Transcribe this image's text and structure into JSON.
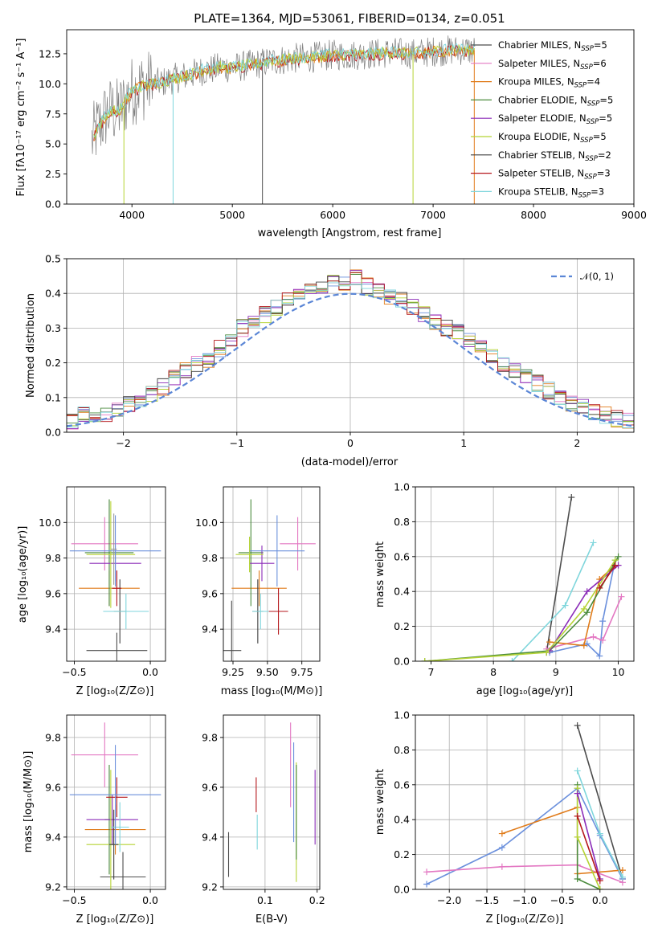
{
  "palette": [
    "#4d4d4d",
    "#e377c2",
    "#e07b1a",
    "#4a8a3c",
    "#8b2cb8",
    "#b5d334",
    "#404040",
    "#b5171c",
    "#7fd6dc",
    "#6a8fdc",
    "#9a9a9a"
  ],
  "ssp_names": [
    "Chabrier MILES",
    "Salpeter MILES",
    "Kroupa MILES",
    "Chabrier ELODIE",
    "Salpeter ELODIE",
    "Kroupa ELODIE",
    "Chabrier STELIB",
    "Salpeter STELIB",
    "Kroupa STELIB"
  ],
  "chart_data": [
    {
      "id": "spectrum",
      "type": "line",
      "title": "PLATE=1364, MJD=53061, FIBERID=0134, z=0.051",
      "xlabel": "wavelength [Angstrom, rest frame]",
      "ylabel": "Flux [fλ10⁻¹⁷ erg cm⁻² s⁻¹ A⁻¹]",
      "xlim": [
        3350,
        9000
      ],
      "ylim": [
        0,
        14.5
      ],
      "xticks": [
        "4000",
        "5000",
        "6000",
        "7000",
        "8000",
        "9000"
      ],
      "xtick_values": [
        4000,
        5000,
        6000,
        7000,
        8000,
        9000
      ],
      "yticks": [
        "0.0",
        "2.5",
        "5.0",
        "7.5",
        "10.0",
        "12.5"
      ],
      "ytick_values": [
        0,
        2.5,
        5,
        7.5,
        10,
        12.5
      ],
      "grid": false,
      "legend_position": "right",
      "legend": [
        "Chabrier MILES, N_SSP=5",
        "Salpeter MILES, N_SSP=6",
        "Kroupa MILES, N_SSP=4",
        "Chabrier ELODIE, N_SSP=5",
        "Salpeter ELODIE, N_SSP=5",
        "Kroupa ELODIE, N_SSP=5",
        "Chabrier STELIB, N_SSP=2",
        "Salpeter STELIB, N_SSP=3",
        "Kroupa STELIB, N_SSP=3"
      ],
      "continuum": {
        "x": [
          3600,
          3650,
          3700,
          3750,
          3800,
          3850,
          3900,
          3950,
          4000,
          4100,
          4200,
          4300,
          4400,
          4500,
          4600,
          4700,
          4800,
          4900,
          5000,
          5200,
          5400,
          5600,
          5800,
          6000,
          6200,
          6400,
          6600,
          6800,
          7000,
          7200,
          7400
        ],
        "y": [
          5.2,
          6.2,
          6.8,
          7.5,
          7.8,
          7.6,
          8.0,
          8.8,
          9.4,
          9.8,
          10.0,
          10.1,
          10.4,
          10.6,
          10.8,
          11.1,
          11.2,
          11.4,
          11.3,
          11.6,
          11.9,
          12.1,
          12.2,
          12.4,
          12.4,
          12.5,
          12.6,
          12.5,
          12.7,
          12.8,
          12.8
        ]
      }
    },
    {
      "id": "residuals",
      "type": "bar",
      "xlabel": "(data-model)/error",
      "ylabel": "Normed distribution",
      "xlim": [
        -2.5,
        2.5
      ],
      "ylim": [
        0,
        0.5
      ],
      "xticks": [
        "−2",
        "−1",
        "0",
        "1",
        "2"
      ],
      "xtick_values": [
        -2,
        -1,
        0,
        1,
        2
      ],
      "yticks": [
        "0.0",
        "0.1",
        "0.2",
        "0.3",
        "0.4",
        "0.5"
      ],
      "ytick_values": [
        0,
        0.1,
        0.2,
        0.3,
        0.4,
        0.5
      ],
      "grid": true,
      "legend_position": "top-right",
      "legend": [
        "𝒩(0, 1)"
      ],
      "bin_edges_start": -2.5,
      "bin_width": 0.1,
      "normal": {
        "mean": 0,
        "sigma": 1
      },
      "hist_values": [
        0.03,
        0.05,
        0.05,
        0.05,
        0.06,
        0.08,
        0.09,
        0.11,
        0.13,
        0.16,
        0.18,
        0.2,
        0.21,
        0.24,
        0.27,
        0.3,
        0.31,
        0.34,
        0.36,
        0.38,
        0.4,
        0.42,
        0.42,
        0.43,
        0.43,
        0.45,
        0.42,
        0.41,
        0.39,
        0.38,
        0.36,
        0.34,
        0.32,
        0.3,
        0.29,
        0.27,
        0.24,
        0.22,
        0.2,
        0.18,
        0.16,
        0.14,
        0.12,
        0.1,
        0.08,
        0.07,
        0.06,
        0.05,
        0.04,
        0.03
      ]
    },
    {
      "id": "age_vs_Z",
      "type": "scatter",
      "xlabel": "Z [log₁₀(Z/Z⊙)]",
      "ylabel": "age  [log₁₀(age/yr)]",
      "xlim": [
        -0.55,
        0.1
      ],
      "ylim": [
        9.22,
        10.2
      ],
      "xticks": [
        "−0.5",
        "0.0"
      ],
      "xtick_values": [
        -0.5,
        0
      ],
      "yticks": [
        "9.4",
        "9.6",
        "9.8",
        "10.0"
      ],
      "ytick_values": [
        9.4,
        9.6,
        9.8,
        10.0
      ],
      "grid": true,
      "points": [
        {
          "c": 0,
          "x": -0.22,
          "y": 9.28,
          "dx": 0.2,
          "dy": 0.1
        },
        {
          "c": 1,
          "x": -0.3,
          "y": 9.88,
          "dx": 0.22,
          "dy": 0.15
        },
        {
          "c": 2,
          "x": -0.27,
          "y": 9.63,
          "dx": 0.2,
          "dy": 0.1
        },
        {
          "c": 3,
          "x": -0.27,
          "y": 9.83,
          "dx": 0.16,
          "dy": 0.3
        },
        {
          "c": 4,
          "x": -0.23,
          "y": 9.77,
          "dx": 0.17,
          "dy": 0.1
        },
        {
          "c": 5,
          "x": -0.26,
          "y": 9.82,
          "dx": 0.16,
          "dy": 0.3
        },
        {
          "c": 6,
          "x": -0.2,
          "y": 9.5,
          "dx": 0.04,
          "dy": 0.18
        },
        {
          "c": 7,
          "x": -0.22,
          "y": 9.63,
          "dx": 0.03,
          "dy": 0.1
        },
        {
          "c": 8,
          "x": -0.16,
          "y": 9.5,
          "dx": 0.15,
          "dy": 0.1
        },
        {
          "c": 9,
          "x": -0.23,
          "y": 9.84,
          "dx": 0.3,
          "dy": 0.2
        },
        {
          "c": 10,
          "x": -0.24,
          "y": 9.85,
          "dx": 0.02,
          "dy": 0.2
        }
      ]
    },
    {
      "id": "age_vs_mass",
      "type": "scatter",
      "xlabel": "mass [log₁₀(M/M⊙)]",
      "ylabel": "",
      "xlim": [
        9.18,
        9.88
      ],
      "ylim": [
        9.22,
        10.2
      ],
      "xticks": [
        "9.25",
        "9.50",
        "9.75"
      ],
      "xtick_values": [
        9.25,
        9.5,
        9.75
      ],
      "yticks": [
        "9.4",
        "9.6",
        "9.8",
        "10.0"
      ],
      "ytick_values": [
        9.4,
        9.6,
        9.8,
        10.0
      ],
      "grid": true,
      "points": [
        {
          "c": 0,
          "x": 9.24,
          "y": 9.28,
          "dx": 0.07,
          "dy": 0.28
        },
        {
          "c": 1,
          "x": 9.72,
          "y": 9.88,
          "dx": 0.13,
          "dy": 0.15
        },
        {
          "c": 2,
          "x": 9.44,
          "y": 9.63,
          "dx": 0.2,
          "dy": 0.1
        },
        {
          "c": 3,
          "x": 9.38,
          "y": 9.83,
          "dx": 0.09,
          "dy": 0.3
        },
        {
          "c": 4,
          "x": 9.46,
          "y": 9.77,
          "dx": 0.09,
          "dy": 0.1
        },
        {
          "c": 5,
          "x": 9.37,
          "y": 9.82,
          "dx": 0.1,
          "dy": 0.1
        },
        {
          "c": 6,
          "x": 9.43,
          "y": 9.5,
          "dx": 0.04,
          "dy": 0.18
        },
        {
          "c": 7,
          "x": 9.58,
          "y": 9.5,
          "dx": 0.07,
          "dy": 0.13
        },
        {
          "c": 8,
          "x": 9.45,
          "y": 9.5,
          "dx": 0.06,
          "dy": 0.1
        },
        {
          "c": 9,
          "x": 9.57,
          "y": 9.84,
          "dx": 0.2,
          "dy": 0.2
        }
      ]
    },
    {
      "id": "weight_vs_age",
      "type": "line",
      "xlabel": "age  [log₁₀(age/yr)]",
      "ylabel": "mass weight",
      "xlim": [
        6.75,
        10.25
      ],
      "ylim": [
        0,
        1
      ],
      "xticks": [
        "7",
        "8",
        "9",
        "10"
      ],
      "xtick_values": [
        7,
        8,
        9,
        10
      ],
      "yticks": [
        "0.0",
        "0.2",
        "0.4",
        "0.6",
        "0.8",
        "1.0"
      ],
      "ytick_values": [
        0,
        0.2,
        0.4,
        0.6,
        0.8,
        1.0
      ],
      "grid": true,
      "series": [
        {
          "c": 0,
          "x": [
            8.85,
            9.25
          ],
          "y": [
            0.05,
            0.94
          ]
        },
        {
          "c": 8,
          "x": [
            8.3,
            9.15,
            9.6
          ],
          "y": [
            0.0,
            0.32,
            0.68
          ]
        },
        {
          "c": 9,
          "x": [
            8.9,
            9.5,
            9.7,
            9.75,
            9.95
          ],
          "y": [
            0.05,
            0.1,
            0.03,
            0.23,
            0.58
          ]
        },
        {
          "c": 1,
          "x": [
            8.85,
            9.6,
            9.75,
            10.05
          ],
          "y": [
            0.07,
            0.14,
            0.12,
            0.37
          ]
        },
        {
          "c": 2,
          "x": [
            8.9,
            9.45,
            9.7,
            9.95
          ],
          "y": [
            0.11,
            0.09,
            0.47,
            0.55
          ]
        },
        {
          "c": 3,
          "x": [
            6.9,
            8.9,
            9.5,
            10.0
          ],
          "y": [
            0.0,
            0.06,
            0.28,
            0.6
          ]
        },
        {
          "c": 4,
          "x": [
            8.9,
            9.5,
            10.0
          ],
          "y": [
            0.06,
            0.4,
            0.55
          ]
        },
        {
          "c": 5,
          "x": [
            6.9,
            8.85,
            9.45,
            9.95
          ],
          "y": [
            0.0,
            0.05,
            0.3,
            0.58
          ]
        },
        {
          "c": 7,
          "x": [
            9.7,
            9.95
          ],
          "y": [
            0.42,
            0.55
          ]
        }
      ]
    },
    {
      "id": "mass_vs_Z",
      "type": "scatter",
      "xlabel": "Z [log₁₀(Z/Z⊙)]",
      "ylabel": "mass [log₁₀(M/M⊙)]",
      "xlim": [
        -0.55,
        0.1
      ],
      "ylim": [
        9.19,
        9.89
      ],
      "xticks": [
        "−0.5",
        "0.0"
      ],
      "xtick_values": [
        -0.5,
        0
      ],
      "yticks": [
        "9.2",
        "9.4",
        "9.6",
        "9.8"
      ],
      "ytick_values": [
        9.2,
        9.4,
        9.6,
        9.8
      ],
      "grid": true,
      "points": [
        {
          "c": 0,
          "x": -0.18,
          "y": 9.24,
          "dx": 0.15,
          "dy": 0.1
        },
        {
          "c": 1,
          "x": -0.3,
          "y": 9.73,
          "dx": 0.22,
          "dy": 0.13
        },
        {
          "c": 2,
          "x": -0.23,
          "y": 9.43,
          "dx": 0.2,
          "dy": 0.1
        },
        {
          "c": 3,
          "x": -0.27,
          "y": 9.47,
          "dx": 0.03,
          "dy": 0.22
        },
        {
          "c": 4,
          "x": -0.25,
          "y": 9.47,
          "dx": 0.17,
          "dy": 0.1
        },
        {
          "c": 5,
          "x": -0.26,
          "y": 9.37,
          "dx": 0.16,
          "dy": 0.3
        },
        {
          "c": 6,
          "x": -0.24,
          "y": 9.37,
          "dx": 0.03,
          "dy": 0.14
        },
        {
          "c": 7,
          "x": -0.22,
          "y": 9.56,
          "dx": 0.07,
          "dy": 0.08
        },
        {
          "c": 8,
          "x": -0.2,
          "y": 9.44,
          "dx": 0.06,
          "dy": 0.1
        },
        {
          "c": 9,
          "x": -0.23,
          "y": 9.57,
          "dx": 0.3,
          "dy": 0.2
        }
      ]
    },
    {
      "id": "mass_vs_ebv",
      "type": "scatter",
      "xlabel": "E(B-V)",
      "ylabel": "",
      "xlim": [
        0.02,
        0.205
      ],
      "ylim": [
        9.19,
        9.89
      ],
      "xticks": [
        "0.1",
        "0.2"
      ],
      "xtick_values": [
        0.1,
        0.2
      ],
      "yticks": [
        "9.2",
        "9.4",
        "9.6",
        "9.8"
      ],
      "ytick_values": [
        9.2,
        9.4,
        9.6,
        9.8
      ],
      "grid": true,
      "points": [
        {
          "c": 0,
          "x": 0.03,
          "y": 9.33,
          "dx": 0,
          "dy": 0.09
        },
        {
          "c": 7,
          "x": 0.083,
          "y": 9.57,
          "dx": 0,
          "dy": 0.07
        },
        {
          "c": 8,
          "x": 0.085,
          "y": 9.42,
          "dx": 0,
          "dy": 0.07
        },
        {
          "c": 1,
          "x": 0.149,
          "y": 9.69,
          "dx": 0,
          "dy": 0.17
        },
        {
          "c": 9,
          "x": 0.155,
          "y": 9.58,
          "dx": 0,
          "dy": 0.2
        },
        {
          "c": 5,
          "x": 0.16,
          "y": 9.46,
          "dx": 0,
          "dy": 0.24
        },
        {
          "c": 3,
          "x": 0.16,
          "y": 9.5,
          "dx": 0,
          "dy": 0.19
        },
        {
          "c": 4,
          "x": 0.196,
          "y": 9.52,
          "dx": 0,
          "dy": 0.15
        }
      ]
    },
    {
      "id": "weight_vs_Z",
      "type": "line",
      "xlabel": "Z [log₁₀(Z/Z⊙)]",
      "ylabel": "mass weight",
      "xlim": [
        -2.45,
        0.45
      ],
      "ylim": [
        0,
        1
      ],
      "xticks": [
        "−2.0",
        "−1.5",
        "−1.0",
        "−0.5",
        "0.0"
      ],
      "xtick_values": [
        -2,
        -1.5,
        -1,
        -0.5,
        0
      ],
      "yticks": [
        "0.0",
        "0.2",
        "0.4",
        "0.6",
        "0.8",
        "1.0"
      ],
      "ytick_values": [
        0,
        0.2,
        0.4,
        0.6,
        0.8,
        1.0
      ],
      "grid": true,
      "series": [
        {
          "c": 0,
          "x": [
            -0.3,
            0.3
          ],
          "y": [
            0.94,
            0.06
          ]
        },
        {
          "c": 9,
          "x": [
            -2.3,
            -1.3,
            -0.3,
            0.0,
            0.3
          ],
          "y": [
            0.03,
            0.24,
            0.58,
            0.31,
            0.06
          ]
        },
        {
          "c": 1,
          "x": [
            -2.3,
            -1.3,
            -0.3,
            0.3
          ],
          "y": [
            0.1,
            0.13,
            0.14,
            0.04
          ]
        },
        {
          "c": 2,
          "x": [
            -1.3,
            -0.3,
            -0.3,
            0.3
          ],
          "y": [
            0.32,
            0.47,
            0.09,
            0.11
          ]
        },
        {
          "c": 8,
          "x": [
            -0.3,
            0.0,
            0.3
          ],
          "y": [
            0.68,
            0.32,
            0.07
          ]
        },
        {
          "c": 3,
          "x": [
            -0.3,
            -0.3,
            0.0
          ],
          "y": [
            0.6,
            0.06,
            0.0
          ]
        },
        {
          "c": 5,
          "x": [
            -0.3,
            -0.3,
            0.0
          ],
          "y": [
            0.58,
            0.3,
            0.0
          ]
        },
        {
          "c": 4,
          "x": [
            -0.3,
            0.0
          ],
          "y": [
            0.55,
            0.06
          ]
        },
        {
          "c": 7,
          "x": [
            -0.3,
            0.0
          ],
          "y": [
            0.42,
            0.05
          ]
        }
      ]
    }
  ]
}
